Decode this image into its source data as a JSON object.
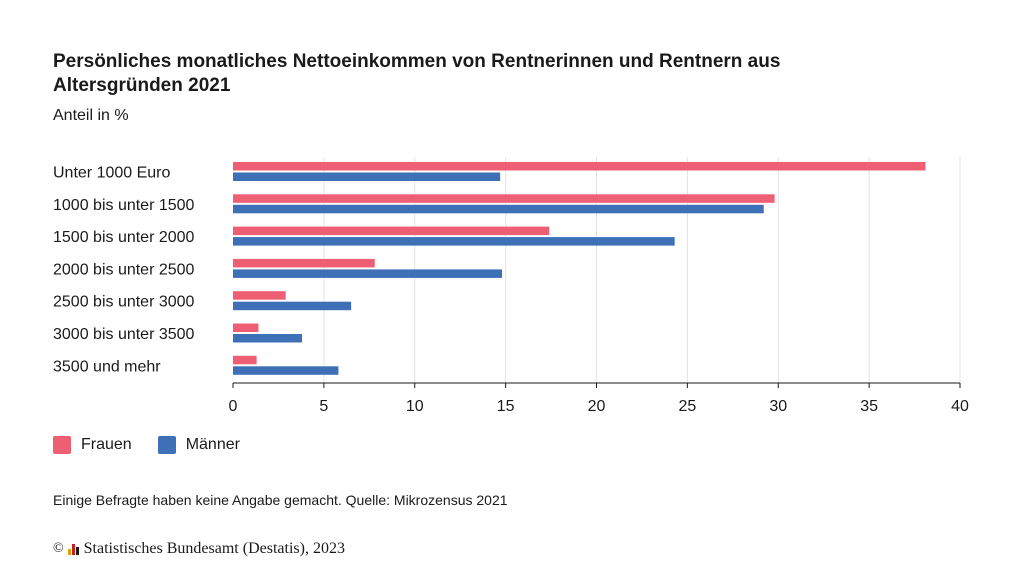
{
  "header": {
    "title": "Persönliches monatliches Nettoeinkommen von Rentnerinnen und Rentnern aus Altersgründen 2021",
    "subtitle": "Anteil in %"
  },
  "footer": {
    "note": "Einige Befragte haben keine Angabe gemacht. Quelle: Mikrozensus 2021",
    "copyright_symbol": "©",
    "copyright": "Statistisches Bundesamt (Destatis), 2023"
  },
  "colors": {
    "frauen": "#ef5f74",
    "maenner": "#3e70b8",
    "grid": "#e3e3e3",
    "axis": "#1a1a1a"
  },
  "chart_data": {
    "type": "bar",
    "orientation": "horizontal",
    "categories": [
      "Unter 1000 Euro",
      "1000 bis unter 1500",
      "1500 bis unter 2000",
      "2000 bis unter 2500",
      "2500 bis unter 3000",
      "3000 bis unter 3500",
      "3500 und mehr"
    ],
    "series": [
      {
        "name": "Frauen",
        "values": [
          38.1,
          29.8,
          17.4,
          7.8,
          2.9,
          1.4,
          1.3
        ]
      },
      {
        "name": "Männer",
        "values": [
          14.7,
          29.2,
          24.3,
          14.8,
          6.5,
          3.8,
          5.8
        ]
      }
    ],
    "xlim": [
      0,
      40
    ],
    "xticks": [
      0,
      5,
      10,
      15,
      20,
      25,
      30,
      35,
      40
    ],
    "grid": true,
    "legend_position": "bottom-left"
  }
}
